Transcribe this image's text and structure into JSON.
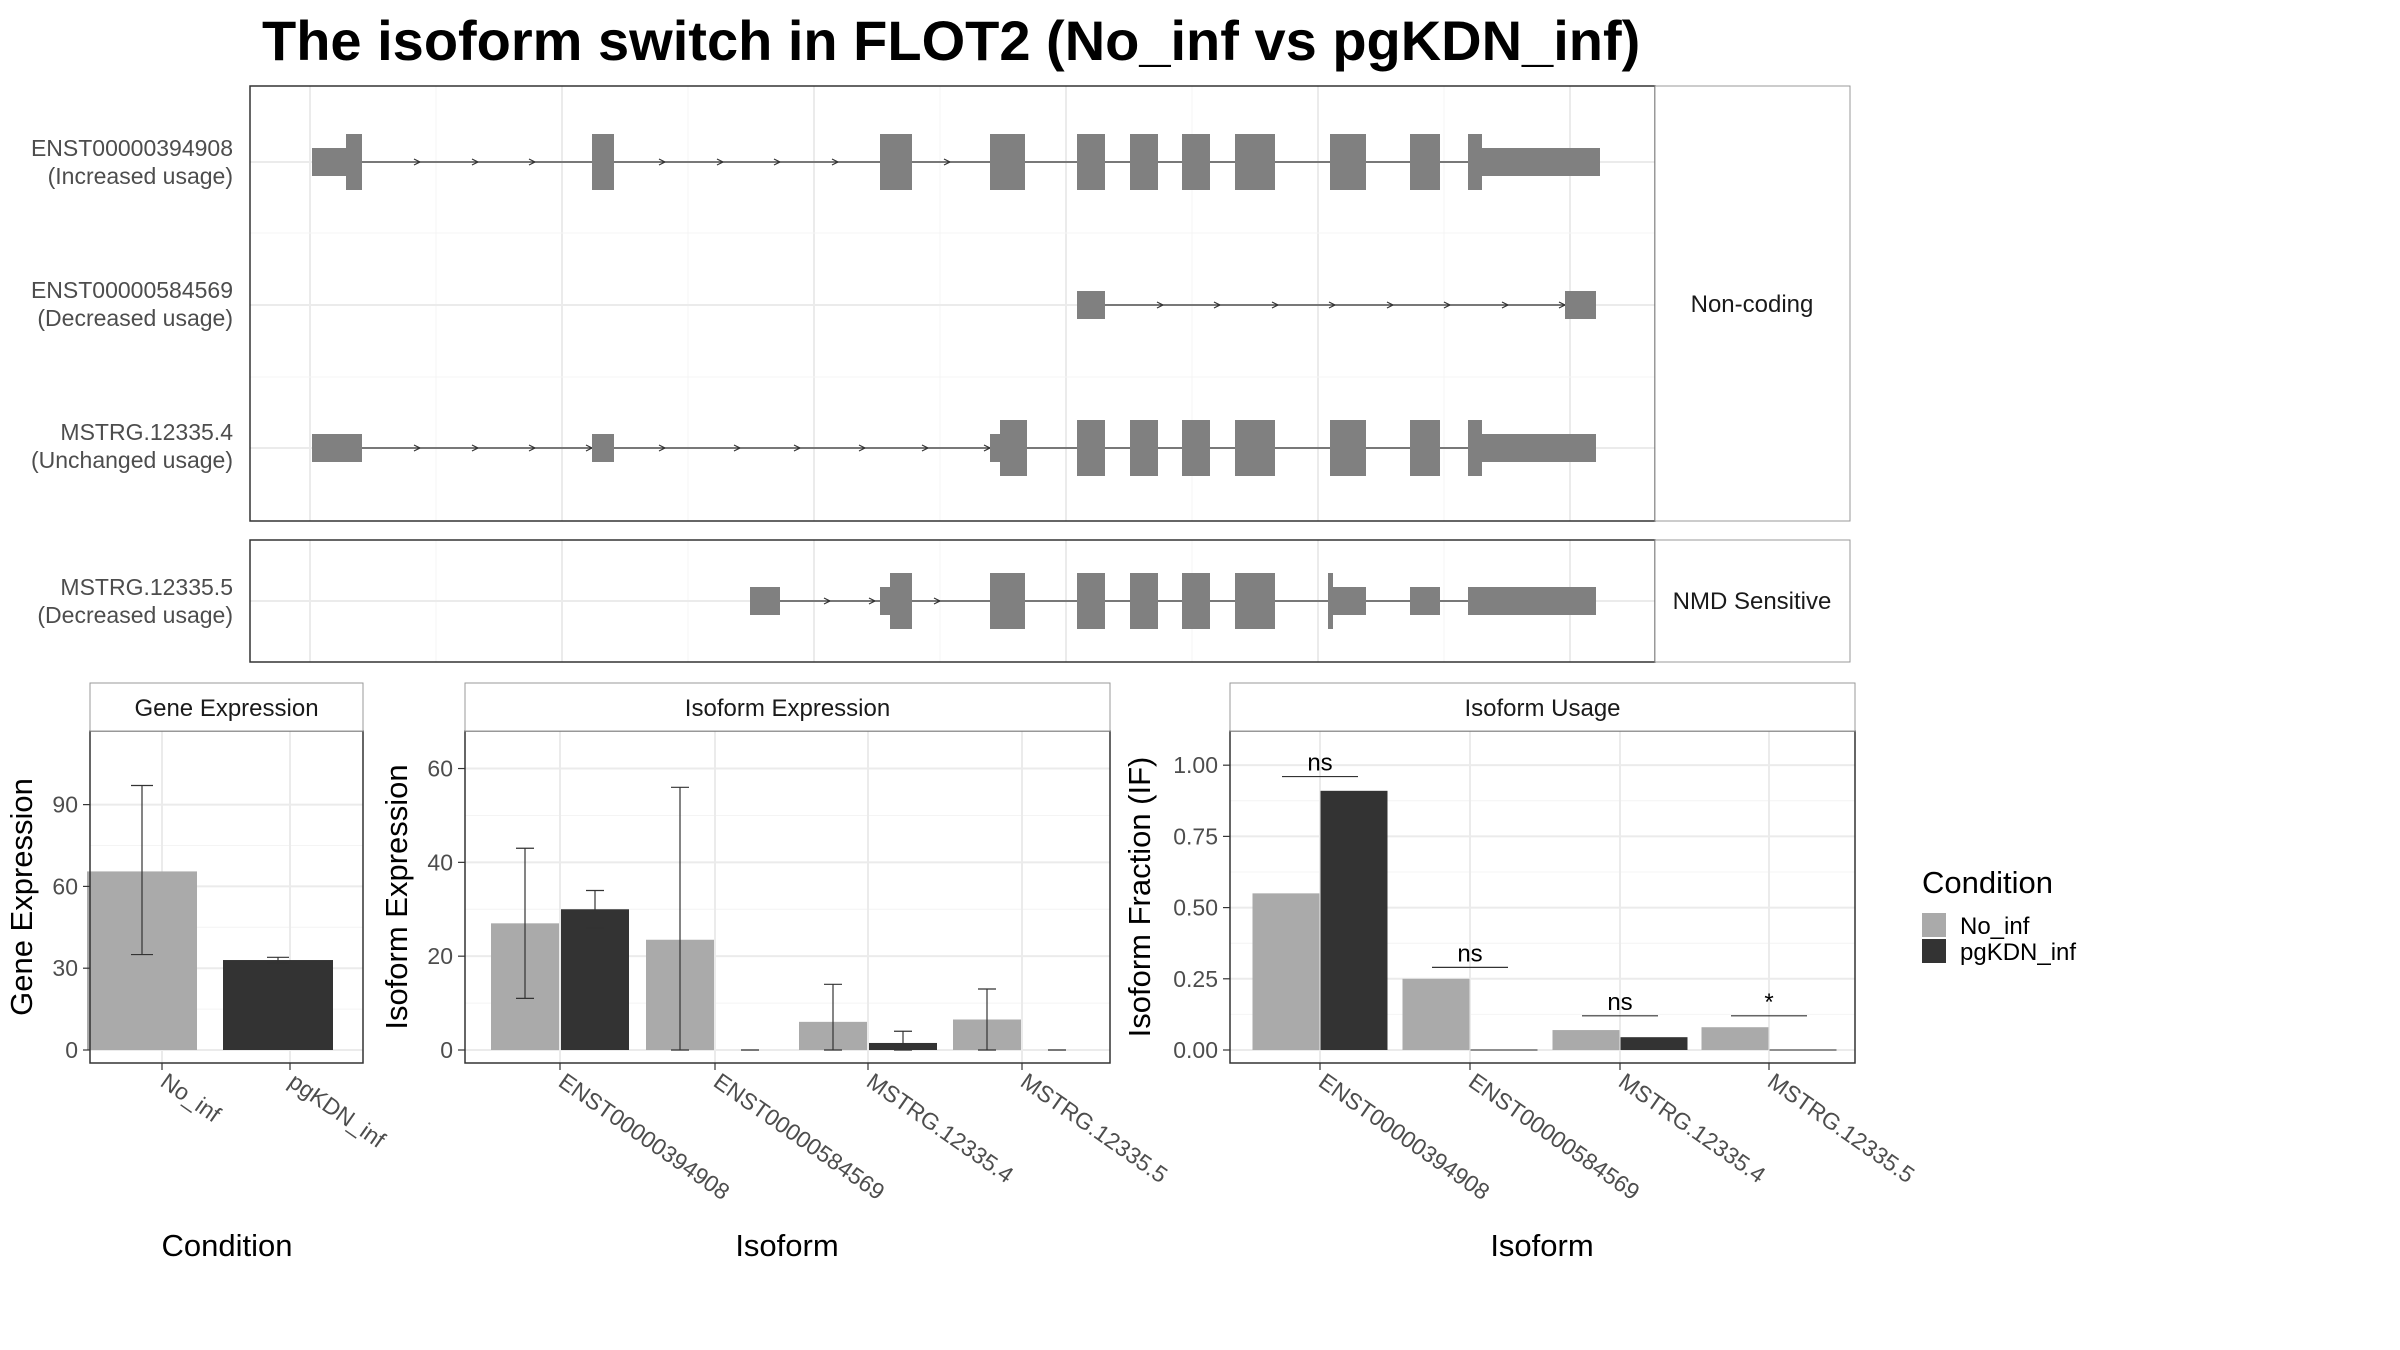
{
  "title": "The isoform switch in FLOT2 (No_inf vs pgKDN_inf)",
  "legend": {
    "title": "Condition",
    "items": [
      {
        "label": "No_inf",
        "color": "#aaaaaa"
      },
      {
        "label": "pgKDN_inf",
        "color": "#333333"
      }
    ]
  },
  "colors": {
    "exon": "#808080",
    "no_inf": "#aaaaaa",
    "pgkdn_inf": "#333333",
    "frame": "#333333",
    "grid": "#ebebeb"
  },
  "structure": {
    "groups": [
      {
        "label": "Non-coding",
        "transcripts": [
          {
            "id": "ENST00000394908",
            "usage": "(Increased usage)"
          },
          {
            "id": "ENST00000584569",
            "usage": "(Decreased usage)"
          },
          {
            "id": "MSTRG.12335.4",
            "usage": "(Unchanged usage)"
          }
        ]
      },
      {
        "label": "NMD Sensitive",
        "transcripts": [
          {
            "id": "MSTRG.12335.5",
            "usage": "(Decreased usage)"
          }
        ]
      }
    ]
  },
  "chart_data": [
    {
      "type": "bar",
      "strip": "Gene Expression",
      "xlabel": "Condition",
      "ylabel": "Gene Expression",
      "ylim": [
        0,
        117
      ],
      "yticks": [
        0,
        30,
        60,
        90
      ],
      "categories": [
        "No_inf",
        "pgKDN_inf"
      ],
      "values": [
        65.5,
        33
      ],
      "error_low": [
        35,
        32
      ],
      "error_high": [
        97,
        34
      ]
    },
    {
      "type": "bar",
      "strip": "Isoform Expression",
      "xlabel": "Isoform",
      "ylabel": "Isoform Expression",
      "ylim": [
        0,
        68
      ],
      "yticks": [
        0,
        20,
        40,
        60
      ],
      "categories": [
        "ENST00000394908",
        "ENST00000584569",
        "MSTRG.12335.4",
        "MSTRG.12335.5"
      ],
      "series": [
        {
          "name": "No_inf",
          "values": [
            27,
            23.5,
            6,
            6.5
          ],
          "error_low": [
            11,
            0,
            0,
            0
          ],
          "error_high": [
            43,
            56,
            14,
            13
          ]
        },
        {
          "name": "pgKDN_inf",
          "values": [
            30,
            0,
            1.5,
            0
          ],
          "error_low": [
            26,
            0,
            0,
            0
          ],
          "error_high": [
            34,
            0,
            4,
            0
          ]
        }
      ]
    },
    {
      "type": "bar",
      "strip": "Isoform Usage",
      "xlabel": "Isoform",
      "ylabel": "Isoform Fraction (IF)",
      "ylim": [
        0,
        1.12
      ],
      "yticks": [
        "0.00",
        "0.25",
        "0.50",
        "0.75",
        "1.00"
      ],
      "categories": [
        "ENST00000394908",
        "ENST00000584569",
        "MSTRG.12335.4",
        "MSTRG.12335.5"
      ],
      "series": [
        {
          "name": "No_inf",
          "values": [
            0.55,
            0.25,
            0.07,
            0.08
          ]
        },
        {
          "name": "pgKDN_inf",
          "values": [
            0.91,
            0,
            0.045,
            0
          ]
        }
      ],
      "significance": [
        "ns",
        "ns",
        "ns",
        "*"
      ],
      "significance_y": [
        0.96,
        0.29,
        0.12,
        0.12
      ]
    }
  ]
}
